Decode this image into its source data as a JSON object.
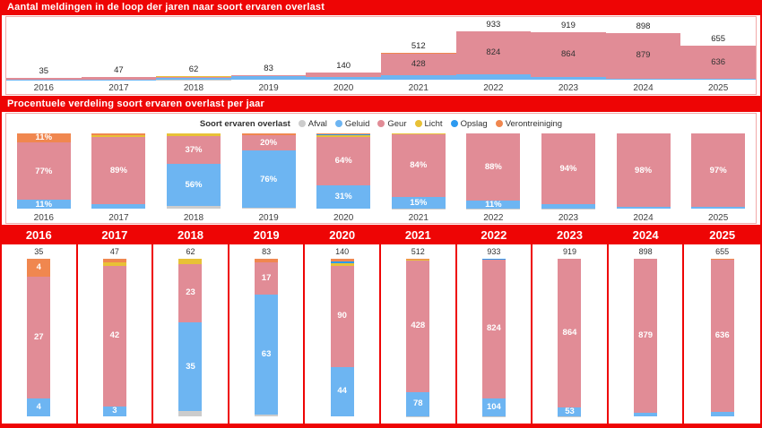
{
  "colors": {
    "header_red": "#ee0505",
    "panel_border": "#f2a9a9",
    "series": {
      "afval": "#cccccc",
      "geluid": "#6db5f2",
      "geur": "#e18c96",
      "licht": "#e8c136",
      "opslag": "#2d9af0",
      "verontreiniging": "#f0874f"
    }
  },
  "chart_data": [
    {
      "type": "area",
      "subtype": "stacked-step-area",
      "title": "Aantal meldingen in de loop der jaren naar soort ervaren overlast",
      "x": [
        "2016",
        "2017",
        "2018",
        "2019",
        "2020",
        "2021",
        "2022",
        "2023",
        "2024",
        "2025"
      ],
      "stack_order": [
        "afval",
        "geluid",
        "geur",
        "licht",
        "opslag",
        "verontreiniging"
      ],
      "series": [
        {
          "name": "Afval",
          "key": "afval",
          "values": [
            0,
            0,
            2,
            1,
            0,
            1,
            1,
            1,
            0,
            0
          ]
        },
        {
          "name": "Geluid",
          "key": "geluid",
          "values": [
            4,
            3,
            35,
            63,
            44,
            78,
            104,
            53,
            19,
            17
          ]
        },
        {
          "name": "Geur",
          "key": "geur",
          "values": [
            27,
            42,
            23,
            17,
            90,
            428,
            824,
            864,
            879,
            636
          ]
        },
        {
          "name": "Licht",
          "key": "licht",
          "values": [
            0,
            1,
            2,
            0,
            2,
            3,
            1,
            0,
            0,
            0
          ]
        },
        {
          "name": "Opslag",
          "key": "opslag",
          "values": [
            0,
            0,
            0,
            0,
            2,
            0,
            2,
            0,
            0,
            0
          ]
        },
        {
          "name": "Verontreiniging",
          "key": "verontreiniging",
          "values": [
            4,
            1,
            0,
            2,
            2,
            2,
            1,
            1,
            0,
            2
          ]
        }
      ],
      "totals": [
        35,
        47,
        62,
        83,
        140,
        512,
        933,
        919,
        898,
        655
      ],
      "total_labels": [
        "35",
        "47",
        "62",
        "83",
        "140",
        "512",
        "933",
        "919",
        "898",
        "655"
      ],
      "inner_labels": [
        null,
        null,
        null,
        null,
        null,
        "428",
        "824",
        "864",
        "879",
        "636"
      ],
      "ylim": [
        0,
        933
      ],
      "grid": false,
      "legend_position": "none"
    },
    {
      "type": "bar",
      "subtype": "100%-stacked-column",
      "title": "Procentuele verdeling soort ervaren overlast per jaar",
      "legend_title": "Soort ervaren overlast",
      "legend_position": "top-center",
      "legend": [
        {
          "key": "afval",
          "label": "Afval"
        },
        {
          "key": "geluid",
          "label": "Geluid"
        },
        {
          "key": "geur",
          "label": "Geur"
        },
        {
          "key": "licht",
          "label": "Licht"
        },
        {
          "key": "opslag",
          "label": "Opslag"
        },
        {
          "key": "verontreiniging",
          "label": "Verontreiniging"
        }
      ],
      "categories": [
        "2016",
        "2017",
        "2018",
        "2019",
        "2020",
        "2021",
        "2022",
        "2023",
        "2024",
        "2025"
      ],
      "pct_labels": [
        {
          "geluid": "11%",
          "geur": "77%",
          "verontreiniging": "11%"
        },
        {
          "geur": "89%"
        },
        {
          "geluid": "56%",
          "geur": "37%"
        },
        {
          "geluid": "76%",
          "geur": "20%"
        },
        {
          "geluid": "31%",
          "geur": "64%"
        },
        {
          "geluid": "15%",
          "geur": "84%"
        },
        {
          "geluid": "11%",
          "geur": "88%"
        },
        {
          "geur": "94%"
        },
        {
          "geur": "98%"
        },
        {
          "geur": "97%"
        }
      ]
    },
    {
      "type": "bar",
      "subtype": "small-multiple-stacked-columns",
      "categories": [
        "2016",
        "2017",
        "2018",
        "2019",
        "2020",
        "2021",
        "2022",
        "2023",
        "2024",
        "2025"
      ],
      "totals_labels": [
        "35",
        "47",
        "62",
        "83",
        "140",
        "512",
        "933",
        "919",
        "898",
        "655"
      ],
      "value_labels": [
        {
          "geluid": "4",
          "geur": "27",
          "verontreiniging": "4"
        },
        {
          "geluid": "3",
          "geur": "42"
        },
        {
          "geluid": "35",
          "geur": "23"
        },
        {
          "geluid": "63",
          "geur": "17"
        },
        {
          "geluid": "44",
          "geur": "90"
        },
        {
          "geluid": "78",
          "geur": "428"
        },
        {
          "geluid": "104",
          "geur": "824"
        },
        {
          "geluid": "53",
          "geur": "864"
        },
        {
          "geur": "879"
        },
        {
          "geur": "636"
        }
      ]
    }
  ]
}
